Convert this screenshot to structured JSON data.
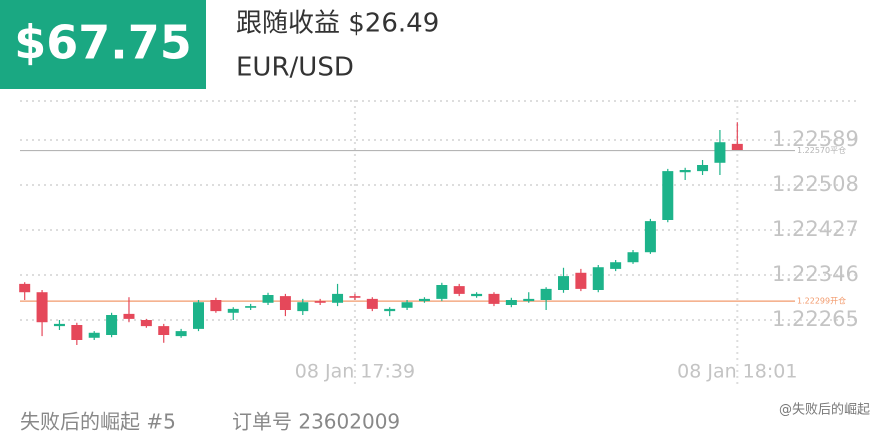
{
  "header": {
    "amount": "$67.75",
    "follow": "跟随收益 $26.49",
    "symbol": "EUR/USD"
  },
  "footer": {
    "user": "失败后的崛起 #5",
    "order": "订单号 23602009",
    "watermark": "@失败后的崛起"
  },
  "chart_data": {
    "type": "candlestick",
    "categories": [
      null,
      null,
      null,
      null,
      null,
      null,
      null,
      null,
      null,
      null,
      null,
      null,
      null,
      null,
      null,
      null,
      null,
      null,
      null,
      "08 Jan 17:39",
      null,
      null,
      null,
      null,
      null,
      null,
      null,
      null,
      null,
      null,
      null,
      null,
      null,
      null,
      null,
      null,
      null,
      null,
      null,
      null,
      null,
      "08 Jan 18:01"
    ],
    "open": [
      1.2233,
      1.22315,
      1.22254,
      1.22256,
      1.22233,
      1.22238,
      1.22276,
      1.22265,
      1.22254,
      1.22236,
      1.22249,
      1.22301,
      1.22278,
      1.22287,
      1.22296,
      1.22308,
      1.22281,
      1.22299,
      1.22296,
      1.22308,
      1.22303,
      1.22281,
      1.22287,
      1.22299,
      1.22303,
      1.22326,
      1.22308,
      1.22312,
      1.22292,
      1.22299,
      1.22301,
      1.22319,
      1.2235,
      1.22319,
      1.22357,
      1.22369,
      1.22387,
      1.22445,
      1.22531,
      1.22533,
      1.22548,
      1.22582
    ],
    "high": [
      1.22333,
      1.22319,
      1.22265,
      1.2226,
      1.22245,
      1.22278,
      1.22306,
      1.22267,
      1.22258,
      1.22249,
      1.22301,
      1.22305,
      1.22288,
      1.22294,
      1.22314,
      1.22312,
      1.22303,
      1.22303,
      1.2233,
      1.22312,
      1.22306,
      1.22288,
      1.22301,
      1.22306,
      1.22332,
      1.2233,
      1.22315,
      1.22315,
      1.22305,
      1.22315,
      1.22324,
      1.22359,
      1.22357,
      1.22364,
      1.22373,
      1.22391,
      1.22447,
      1.22537,
      1.22539,
      1.22553,
      1.22607,
      1.22621
    ],
    "low": [
      1.22301,
      1.22236,
      1.22247,
      1.2222,
      1.22229,
      1.22234,
      1.22261,
      1.22251,
      1.22224,
      1.22233,
      1.22245,
      1.22278,
      1.22265,
      1.22283,
      1.22292,
      1.22272,
      1.22274,
      1.22292,
      1.2229,
      1.22301,
      1.22281,
      1.22272,
      1.22283,
      1.22296,
      1.22299,
      1.22308,
      1.22305,
      1.2229,
      1.22288,
      1.22296,
      1.22283,
      1.22314,
      1.22317,
      1.22315,
      1.22353,
      1.22366,
      1.22384,
      1.22441,
      1.22517,
      1.22526,
      1.22526,
      1.22571
    ],
    "close": [
      1.22315,
      1.22261,
      1.22258,
      1.22229,
      1.22242,
      1.22274,
      1.22267,
      1.22254,
      1.22238,
      1.22245,
      1.22297,
      1.22281,
      1.22285,
      1.2229,
      1.2231,
      1.22283,
      1.22297,
      1.22296,
      1.22312,
      1.22305,
      1.22285,
      1.22285,
      1.22297,
      1.22303,
      1.22328,
      1.22312,
      1.22312,
      1.22294,
      1.22301,
      1.22303,
      1.22321,
      1.22344,
      1.22321,
      1.2236,
      1.22369,
      1.22387,
      1.22443,
      1.22533,
      1.22535,
      1.22544,
      1.22585,
      1.22571
    ],
    "up_color": "#1db38a",
    "down_color": "#e5485a",
    "ylim": [
      1.22175,
      1.22661
    ],
    "yticks": [
      1.22265,
      1.22346,
      1.22427,
      1.22508,
      1.22589
    ],
    "grid": true,
    "reference_lines": [
      {
        "value": 1.2257,
        "label": "1.22570平仓",
        "color": "#b5b5b5"
      },
      {
        "value": 1.22299,
        "label": "1.22299开仓",
        "color": "#f29a6c"
      }
    ]
  }
}
